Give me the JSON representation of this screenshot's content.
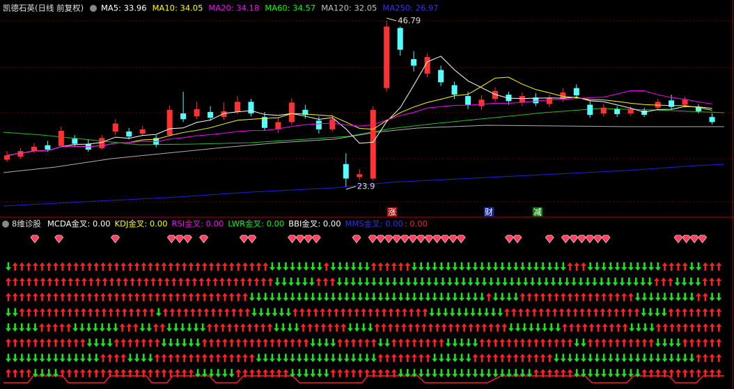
{
  "header": {
    "title": "凯德石英(日线 前复权)",
    "indicators": [
      {
        "text": "MA5: 33.96",
        "color": "#ffffff"
      },
      {
        "text": "MA10: 34.05",
        "color": "#ffff00"
      },
      {
        "text": "MA20: 34.18",
        "color": "#ff00ff"
      },
      {
        "text": "MA60: 34.57",
        "color": "#00ff00"
      },
      {
        "text": "MA120: 32.05",
        "color": "#c0c0c0"
      },
      {
        "text": "MA250: 26.97",
        "color": "#3030ff"
      }
    ]
  },
  "price_chart": {
    "high_label": 46.79,
    "low_label": 23.9,
    "candles": [
      [
        27.6,
        28.2,
        28.8,
        27.3
      ],
      [
        28.0,
        28.8,
        29.2,
        27.7
      ],
      [
        28.8,
        29.4,
        29.9,
        28.5
      ],
      [
        29.6,
        29.0,
        30.2,
        28.7
      ],
      [
        29.5,
        31.6,
        32.2,
        29.3
      ],
      [
        30.5,
        29.8,
        31.0,
        29.4
      ],
      [
        29.8,
        29.0,
        30.4,
        28.7
      ],
      [
        29.2,
        30.6,
        31.0,
        29.0
      ],
      [
        31.5,
        32.6,
        33.2,
        31.0
      ],
      [
        31.5,
        30.8,
        32.0,
        30.4
      ],
      [
        31.2,
        31.8,
        32.3,
        30.9
      ],
      [
        30.6,
        29.7,
        31.0,
        29.3
      ],
      [
        31.0,
        34.5,
        35.1,
        30.8
      ],
      [
        34.0,
        33.2,
        37.0,
        32.8
      ],
      [
        33.6,
        34.6,
        35.6,
        33.2
      ],
      [
        34.2,
        33.4,
        35.0,
        33.0
      ],
      [
        33.5,
        34.3,
        35.5,
        33.1
      ],
      [
        34.2,
        35.6,
        36.4,
        33.9
      ],
      [
        35.6,
        34.0,
        36.0,
        33.6
      ],
      [
        33.5,
        32.0,
        34.2,
        31.6
      ],
      [
        31.8,
        32.8,
        33.4,
        31.3
      ],
      [
        32.8,
        35.5,
        36.1,
        32.4
      ],
      [
        34.5,
        33.8,
        35.2,
        33.3
      ],
      [
        33.0,
        31.8,
        33.6,
        31.2
      ],
      [
        31.8,
        33.2,
        33.8,
        31.5
      ],
      [
        27.0,
        25.0,
        28.5,
        23.9
      ],
      [
        25.2,
        25.6,
        26.3,
        24.8
      ],
      [
        25.0,
        34.5,
        35.0,
        24.7
      ],
      [
        37.5,
        46.0,
        46.79,
        37.0
      ],
      [
        45.8,
        42.8,
        46.0,
        42.0
      ],
      [
        41.5,
        40.6,
        42.6,
        39.8
      ],
      [
        39.5,
        41.8,
        42.3,
        39.0
      ],
      [
        40.0,
        38.3,
        40.6,
        37.8
      ],
      [
        37.9,
        36.6,
        38.4,
        36.0
      ],
      [
        36.4,
        35.2,
        37.0,
        34.6
      ],
      [
        35.0,
        35.9,
        36.5,
        34.5
      ],
      [
        36.0,
        37.1,
        37.6,
        35.6
      ],
      [
        36.6,
        35.7,
        37.0,
        35.2
      ],
      [
        35.5,
        36.4,
        36.9,
        35.0
      ],
      [
        36.2,
        35.4,
        36.8,
        35.0
      ],
      [
        35.3,
        36.1,
        36.6,
        34.9
      ],
      [
        36.0,
        36.9,
        37.5,
        35.6
      ],
      [
        37.5,
        36.5,
        38.0,
        36.0
      ],
      [
        35.2,
        33.8,
        35.7,
        33.4
      ],
      [
        34.0,
        34.8,
        35.3,
        33.6
      ],
      [
        34.6,
        33.9,
        35.0,
        33.5
      ],
      [
        34.0,
        34.6,
        35.0,
        33.7
      ],
      [
        34.4,
        33.8,
        34.8,
        33.5
      ],
      [
        34.8,
        35.6,
        36.0,
        34.5
      ],
      [
        35.8,
        34.9,
        36.6,
        34.5
      ],
      [
        35.2,
        35.9,
        36.3,
        34.8
      ],
      [
        34.8,
        34.3,
        35.3,
        34.0
      ],
      [
        33.5,
        32.8,
        34.0,
        32.5
      ]
    ],
    "events": [
      {
        "text": "涨",
        "bg": "#b01010"
      },
      {
        "text": "财",
        "bg": "#1030a0"
      },
      {
        "text": "减",
        "bg": "#108010"
      }
    ]
  },
  "indicator_panel": {
    "title": "8维诊股",
    "items": [
      {
        "text": "MCDA金叉: 0.00",
        "color": "#ffffff"
      },
      {
        "text": "KDJ金叉: 0.00",
        "color": "#ffff00"
      },
      {
        "text": "RSI金叉: 0.00",
        "color": "#ff00ff"
      },
      {
        "text": "LWR金叉: 0.00",
        "color": "#00ff00"
      },
      {
        "text": "BBI金叉: 0.00",
        "color": "#ffffff"
      },
      {
        "text": "MMS金叉: 0.00",
        "color": "#3030ff"
      },
      {
        "text": ": 0.00",
        "color": "#ff2020"
      }
    ],
    "diamonds": "100100000010000001110100001100001111000010111111111111000001100010111111000000001111",
    "arrow_rows": [
      "duuuuuuuuuuuuuuuuuuuuuuuuuuuuuuuuuuuuuuddddddddudddddduuuuuuddddddddddddddddddddddduuuddddddddddduuuudduuu",
      "uuuuuuuuuuuuuuuuuuuuuuuuuuuuuuuuuuuuuuudddddduuudddddddddddddddddddddddddddddddddddddddddddddduuudddduuu",
      "uuuuuuuuuuuuuuuuuuuuuuuuuuuuuuuuuuuudddddddddddddddddddddddddddddddddddudddduuuuuuuuuuuuuuuuuddddddddduudd",
      "dduuuuuuuuuuuuuuuuuuuuduuuuuuuuuuuuudddddduuuuuuuuuuuuuuuuuuuuddddddddddduuuuuuuuuuuuuuuuuuuudddduuuuuuuu",
      "ddddduuuuuddddddduuudduudddddduuuuuuuuuudddduuuuuuudddduuuuuuuuuuuuuuuuuuuudddddddduuuuuuuuuudddduuuuuuuuuu",
      "uuuuuuuuuuuudddduuuuuuudddddduuuuuuuuuuuuuuuudddduuuuuudduuuuuuuuddddduuuuuuuuuuuuuudduuuuuuuuuudddduuuuuu",
      "dddddddddddddduuuudddduuuuuuuuuuuuuuudddddddddddddddddduuuuuuuudddddduuuuuuuuuuuuddddddddddddddddddddduuuu",
      "uuuudddduuuuuuuuuuuuuuuuuuuudddddduuuuuuuudddddduuuuuuuuuudddddddddddddddddddduuuuuudddddddddduuuuuuuuuuuu"
    ]
  }
}
